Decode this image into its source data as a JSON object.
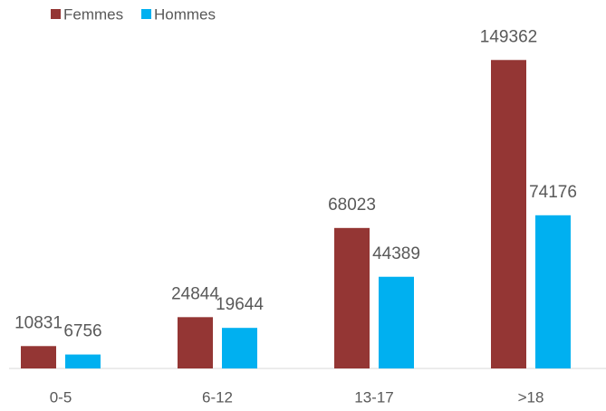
{
  "chart_data": {
    "type": "bar",
    "categories": [
      "0-5",
      "6-12",
      "13-17",
      ">18"
    ],
    "series": [
      {
        "name": "Femmes",
        "color": "#943634",
        "values": [
          10831,
          24844,
          68023,
          149362
        ]
      },
      {
        "name": "Hommes",
        "color": "#00b0f0",
        "values": [
          6756,
          19644,
          44389,
          74176
        ]
      }
    ],
    "ylim": [
      0,
      160000
    ]
  }
}
